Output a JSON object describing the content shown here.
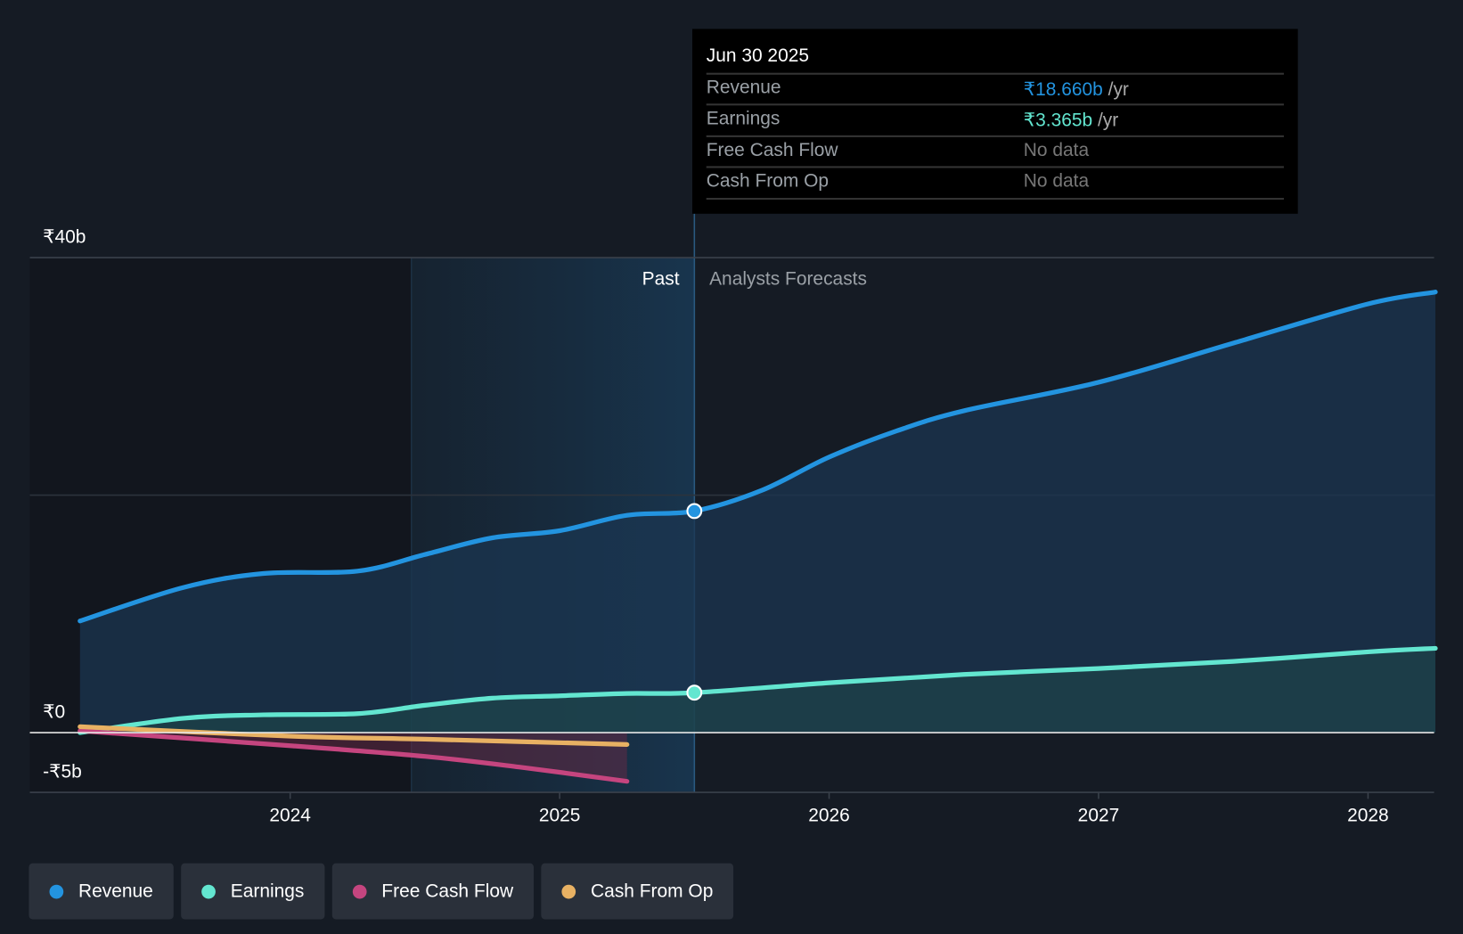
{
  "chart_data": {
    "type": "area",
    "title": "",
    "xlabel": "",
    "ylabel": "",
    "ylim": [
      -5,
      40
    ],
    "xlim": [
      2023.22,
      2028.25
    ],
    "y_ticks": [
      "₹40b",
      "₹0",
      "-₹5b"
    ],
    "x_ticks": [
      "2024",
      "2025",
      "2026",
      "2027",
      "2028"
    ],
    "x_tick_values": [
      2024,
      2025,
      2026,
      2027,
      2028
    ],
    "past_label": "Past",
    "forecast_label": "Analysts Forecasts",
    "past_range": [
      2024.45,
      2025.5
    ],
    "divider_x": 2025.5,
    "series": [
      {
        "name": "Revenue",
        "color": "#2394e0",
        "x": [
          2023.22,
          2023.6,
          2023.9,
          2024.25,
          2024.5,
          2024.75,
          2025.0,
          2025.25,
          2025.5,
          2025.75,
          2026.0,
          2026.25,
          2026.5,
          2027.0,
          2027.5,
          2028.0,
          2028.25
        ],
        "values": [
          9.4,
          12.2,
          13.4,
          13.6,
          15.0,
          16.4,
          17.0,
          18.3,
          18.66,
          20.4,
          23.2,
          25.4,
          27.1,
          29.5,
          32.8,
          36.1,
          37.1
        ]
      },
      {
        "name": "Earnings",
        "color": "#63e6d0",
        "x": [
          2023.22,
          2023.6,
          2023.9,
          2024.25,
          2024.5,
          2024.75,
          2025.0,
          2025.25,
          2025.5,
          2026.0,
          2026.5,
          2027.0,
          2027.5,
          2028.0,
          2028.25
        ],
        "values": [
          0,
          1.2,
          1.5,
          1.6,
          2.3,
          2.9,
          3.1,
          3.3,
          3.365,
          4.2,
          4.9,
          5.4,
          6.0,
          6.8,
          7.1
        ]
      },
      {
        "name": "Free Cash Flow",
        "color": "#c5457f",
        "x": [
          2023.22,
          2024.0,
          2024.5,
          2024.85,
          2025.25
        ],
        "values": [
          0.15,
          -1.1,
          -2.0,
          -2.9,
          -4.1
        ]
      },
      {
        "name": "Cash From Op",
        "color": "#e8b163",
        "x": [
          2023.22,
          2024.0,
          2024.5,
          2025.25
        ],
        "values": [
          0.5,
          -0.3,
          -0.55,
          -1.0
        ]
      }
    ],
    "highlight_points": [
      {
        "series": "Revenue",
        "x": 2025.5,
        "value": 18.66
      },
      {
        "series": "Earnings",
        "x": 2025.5,
        "value": 3.365
      }
    ]
  },
  "tooltip": {
    "date": "Jun 30 2025",
    "rows": [
      {
        "label": "Revenue",
        "value": "₹18.660b",
        "unit": " /yr",
        "color": "#2394e0"
      },
      {
        "label": "Earnings",
        "value": "₹3.365b",
        "unit": " /yr",
        "color": "#63e6d0"
      },
      {
        "label": "Free Cash Flow",
        "value": "No data",
        "unit": "",
        "color": "#777777"
      },
      {
        "label": "Cash From Op",
        "value": "No data",
        "unit": "",
        "color": "#777777"
      }
    ]
  },
  "legend": [
    {
      "label": "Revenue",
      "color": "#2394e0"
    },
    {
      "label": "Earnings",
      "color": "#63e6d0"
    },
    {
      "label": "Free Cash Flow",
      "color": "#c5457f"
    },
    {
      "label": "Cash From Op",
      "color": "#e8b163"
    }
  ]
}
